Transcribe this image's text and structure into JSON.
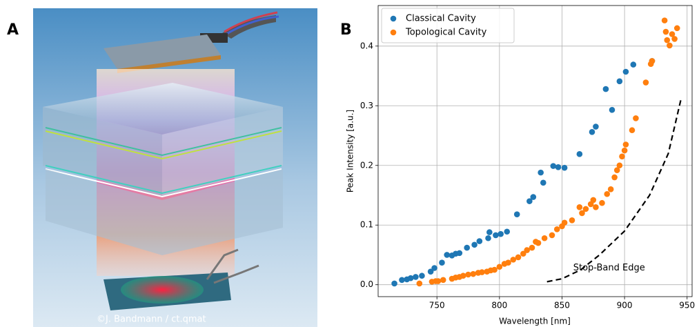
{
  "panel_labels": [
    "A",
    "B"
  ],
  "credit": "©J. Bandmann / ct.qmat",
  "chart_data": {
    "type": "scatter",
    "x_label": "Wavelength [nm]",
    "y_label": "Peak Intensity [a.u.]",
    "xlim": [
      703,
      954
    ],
    "ylim": [
      -0.02,
      0.468
    ],
    "xticks": [
      750,
      800,
      850,
      900,
      950
    ],
    "yticks": [
      {
        "value": 0,
        "label": "0.0"
      },
      0.1,
      0.2,
      0.3,
      0.4
    ],
    "grid": true,
    "legend": "upper left",
    "series": [
      {
        "name": "Classical Cavity",
        "color": "#1f77b4",
        "x": [
          716,
          722,
          726,
          729,
          733,
          738,
          745,
          748,
          754,
          758,
          762,
          765,
          768,
          774,
          780,
          784,
          791,
          792,
          797,
          801,
          806,
          814,
          824,
          827,
          833,
          835,
          843,
          847,
          852,
          864,
          874,
          877,
          885,
          890,
          896,
          901,
          907,
          922
        ],
        "values": [
          0.002,
          0.008,
          0.009,
          0.011,
          0.013,
          0.015,
          0.022,
          0.028,
          0.037,
          0.05,
          0.049,
          0.052,
          0.053,
          0.062,
          0.067,
          0.073,
          0.078,
          0.088,
          0.083,
          0.085,
          0.089,
          0.118,
          0.14,
          0.147,
          0.188,
          0.171,
          0.199,
          0.197,
          0.196,
          0.219,
          0.256,
          0.265,
          0.328,
          0.293,
          0.341,
          0.357,
          0.369,
          0.375
        ]
      },
      {
        "name": "Topological Cavity",
        "color": "#ff7f0e",
        "x": [
          736,
          746,
          749,
          751,
          755,
          762,
          765,
          768,
          771,
          775,
          779,
          783,
          786,
          790,
          793,
          796,
          800,
          804,
          807,
          811,
          815,
          819,
          822,
          826,
          829,
          831,
          836,
          842,
          846,
          850,
          852,
          858,
          864,
          866,
          869,
          873,
          875,
          877,
          882,
          886,
          889,
          892,
          894,
          896,
          898,
          900,
          901,
          906,
          909,
          917,
          921,
          922,
          932,
          933,
          934,
          936,
          938,
          940,
          942
        ],
        "values": [
          0.002,
          0.005,
          0.006,
          0.006,
          0.008,
          0.01,
          0.012,
          0.013,
          0.015,
          0.017,
          0.018,
          0.02,
          0.021,
          0.022,
          0.024,
          0.025,
          0.03,
          0.035,
          0.037,
          0.042,
          0.046,
          0.052,
          0.058,
          0.062,
          0.072,
          0.07,
          0.078,
          0.083,
          0.093,
          0.098,
          0.104,
          0.108,
          0.13,
          0.12,
          0.127,
          0.135,
          0.142,
          0.13,
          0.137,
          0.152,
          0.16,
          0.18,
          0.192,
          0.2,
          0.215,
          0.225,
          0.235,
          0.259,
          0.279,
          0.339,
          0.37,
          0.375,
          0.443,
          0.424,
          0.41,
          0.401,
          0.42,
          0.412,
          0.43
        ]
      },
      {
        "name": "Stop-Band Edge",
        "color": "#000000",
        "style": "dashed",
        "x": [
          838,
          850,
          865,
          880,
          900,
          920,
          935,
          945
        ],
        "values": [
          0.005,
          0.01,
          0.025,
          0.05,
          0.09,
          0.15,
          0.22,
          0.31
        ]
      }
    ]
  }
}
